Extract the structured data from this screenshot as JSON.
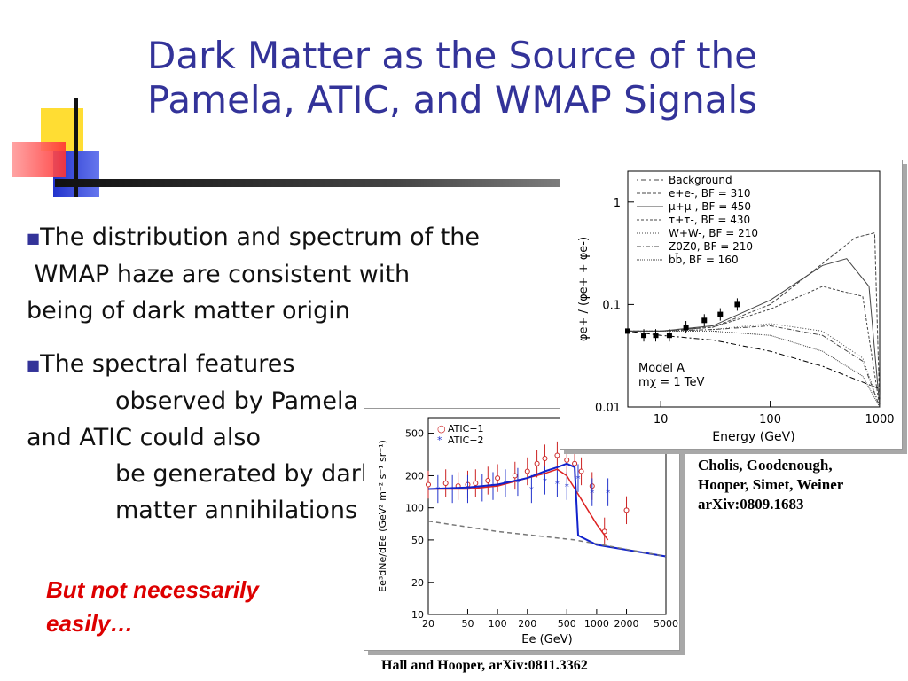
{
  "title": {
    "line1": "Dark Matter as the Source of the",
    "line2": "Pamela, ATIC, and WMAP Signals"
  },
  "bullets": [
    {
      "lines": [
        "The distribution and spectrum of   the",
        " WMAP haze are consistent with",
        "being of dark matter origin"
      ]
    },
    {
      "lines": [
        "The spectral features",
        "observed by Pamela",
        "and ATIC could also",
        "be generated by dark",
        "matter annihilations"
      ]
    }
  ],
  "emphasis": {
    "line1": "But not necessarily",
    "line2": "easily…"
  },
  "citations": {
    "upper": [
      "Cholis, Goodenough,",
      "Hooper, Simet, Weiner",
      "arXiv:0809.1683"
    ],
    "lower": "Hall and Hooper, arXiv:0811.3362"
  },
  "chart_data": [
    {
      "type": "line",
      "xlabel": "Energy (GeV)",
      "ylabel": "φe+ / (φe+ + φe-)",
      "xscale": "log",
      "yscale": "log",
      "xlim": [
        5,
        1000
      ],
      "ylim": [
        0.01,
        2
      ],
      "xticks": [
        "10",
        "100",
        "1000"
      ],
      "yticks": [
        "0.01",
        "0.1",
        "1"
      ],
      "annotation": [
        "Model A",
        "mχ =  1 TeV"
      ],
      "legend": [
        "Background",
        "e+e-, BF = 310",
        "μ+μ-, BF = 450",
        "τ+τ-, BF = 430",
        "W+W-, BF = 210",
        "Z0Z0, BF = 210",
        "bb̄, BF = 160"
      ],
      "series": [
        {
          "name": "Background",
          "x": [
            5,
            10,
            30,
            100,
            300,
            1000
          ],
          "y": [
            0.055,
            0.05,
            0.045,
            0.035,
            0.025,
            0.015
          ]
        },
        {
          "name": "e+e-, BF = 310",
          "x": [
            5,
            10,
            30,
            100,
            300,
            600,
            900,
            1000
          ],
          "y": [
            0.055,
            0.055,
            0.06,
            0.1,
            0.25,
            0.45,
            0.5,
            0.01
          ]
        },
        {
          "name": "μ+μ-, BF = 450",
          "x": [
            5,
            10,
            30,
            100,
            300,
            500,
            800,
            1000
          ],
          "y": [
            0.055,
            0.055,
            0.062,
            0.11,
            0.24,
            0.28,
            0.15,
            0.01
          ]
        },
        {
          "name": "τ+τ-, BF = 430",
          "x": [
            5,
            10,
            30,
            100,
            300,
            700,
            1000
          ],
          "y": [
            0.055,
            0.055,
            0.06,
            0.09,
            0.15,
            0.12,
            0.01
          ]
        },
        {
          "name": "W+W-, BF = 210",
          "x": [
            5,
            10,
            30,
            100,
            300,
            700,
            1000
          ],
          "y": [
            0.055,
            0.055,
            0.057,
            0.065,
            0.055,
            0.03,
            0.01
          ]
        },
        {
          "name": "Z0Z0, BF = 210",
          "x": [
            5,
            10,
            30,
            100,
            300,
            700,
            1000
          ],
          "y": [
            0.055,
            0.055,
            0.057,
            0.062,
            0.05,
            0.028,
            0.01
          ]
        },
        {
          "name": "bb̄, BF = 160",
          "x": [
            5,
            10,
            30,
            100,
            300,
            700,
            1000
          ],
          "y": [
            0.055,
            0.055,
            0.055,
            0.05,
            0.035,
            0.02,
            0.01
          ]
        }
      ],
      "data_points": {
        "x": [
          5,
          7,
          9,
          12,
          17,
          25,
          35,
          50
        ],
        "y": [
          0.055,
          0.05,
          0.05,
          0.05,
          0.06,
          0.07,
          0.08,
          0.1
        ]
      }
    },
    {
      "type": "scatter",
      "xlabel": "Ee (GeV)",
      "ylabel": "Ee³dNe/dEe (GeV² m⁻² s⁻¹ sr⁻¹)",
      "xscale": "log",
      "yscale": "log",
      "xlim": [
        20,
        5000
      ],
      "ylim": [
        10,
        700
      ],
      "xticks": [
        "20",
        "50",
        "100",
        "200",
        "500",
        "1000",
        "2000",
        "5000"
      ],
      "yticks": [
        "10",
        "20",
        "50",
        "100",
        "200",
        "500"
      ],
      "legend": [
        "ATIC−1",
        "ATIC−2"
      ],
      "series": [
        {
          "name": "ATIC−1",
          "x": [
            20,
            30,
            40,
            50,
            60,
            80,
            100,
            150,
            200,
            250,
            300,
            400,
            500,
            600,
            700,
            900,
            1200,
            2000
          ],
          "y": [
            165,
            170,
            160,
            165,
            170,
            180,
            190,
            200,
            220,
            260,
            290,
            310,
            280,
            260,
            220,
            160,
            60,
            95
          ]
        },
        {
          "name": "ATIC−2",
          "x": [
            25,
            35,
            50,
            70,
            90,
            120,
            160,
            220,
            300,
            400,
            500,
            650,
            900,
            1300
          ],
          "y": [
            150,
            150,
            150,
            155,
            160,
            170,
            175,
            150,
            180,
            170,
            160,
            190,
            140,
            140
          ]
        },
        {
          "name": "red curve",
          "x": [
            20,
            50,
            100,
            200,
            300,
            400,
            500,
            700,
            1000,
            1300
          ],
          "y": [
            150,
            150,
            160,
            190,
            210,
            230,
            200,
            120,
            70,
            50
          ]
        },
        {
          "name": "blue curve",
          "x": [
            20,
            50,
            100,
            200,
            300,
            400,
            500,
            600,
            650,
            1000,
            5000
          ],
          "y": [
            150,
            155,
            165,
            190,
            220,
            240,
            260,
            240,
            55,
            45,
            35
          ]
        },
        {
          "name": "background",
          "x": [
            20,
            100,
            600,
            5000
          ],
          "y": [
            75,
            60,
            50,
            35
          ]
        }
      ]
    }
  ]
}
